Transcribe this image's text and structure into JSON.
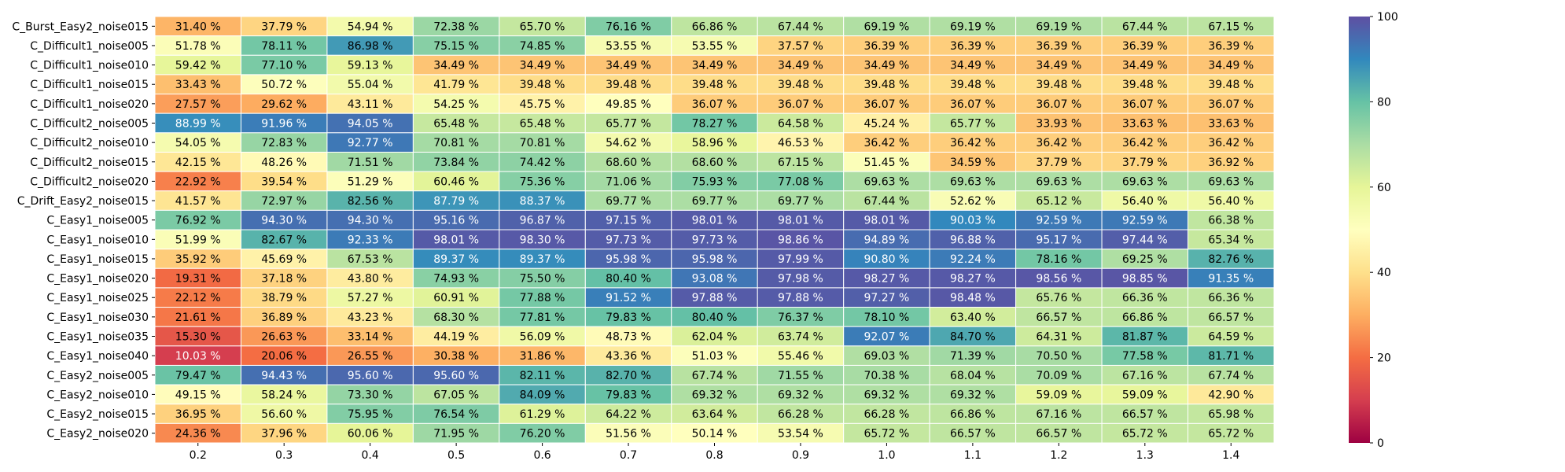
{
  "chart_data": {
    "type": "heatmap",
    "title": "",
    "xlabel": "",
    "ylabel": "",
    "x_categories": [
      "0.2",
      "0.3",
      "0.4",
      "0.5",
      "0.6",
      "0.7",
      "0.8",
      "0.9",
      "1.0",
      "1.1",
      "1.2",
      "1.3",
      "1.4"
    ],
    "y_categories": [
      "C_Burst_Easy2_noise015",
      "C_Difficult1_noise005",
      "C_Difficult1_noise010",
      "C_Difficult1_noise015",
      "C_Difficult1_noise020",
      "C_Difficult2_noise005",
      "C_Difficult2_noise010",
      "C_Difficult2_noise015",
      "C_Difficult2_noise020",
      "C_Drift_Easy2_noise015",
      "C_Easy1_noise005",
      "C_Easy1_noise010",
      "C_Easy1_noise015",
      "C_Easy1_noise020",
      "C_Easy1_noise025",
      "C_Easy1_noise030",
      "C_Easy1_noise035",
      "C_Easy1_noise040",
      "C_Easy2_noise005",
      "C_Easy2_noise010",
      "C_Easy2_noise015",
      "C_Easy2_noise020"
    ],
    "values": [
      [
        31.4,
        37.79,
        54.94,
        72.38,
        65.7,
        76.16,
        66.86,
        67.44,
        69.19,
        69.19,
        69.19,
        67.44,
        67.15
      ],
      [
        51.78,
        78.11,
        86.98,
        75.15,
        74.85,
        53.55,
        53.55,
        37.57,
        36.39,
        36.39,
        36.39,
        36.39,
        36.39
      ],
      [
        59.42,
        77.1,
        59.13,
        34.49,
        34.49,
        34.49,
        34.49,
        34.49,
        34.49,
        34.49,
        34.49,
        34.49,
        34.49
      ],
      [
        33.43,
        50.72,
        55.04,
        41.79,
        39.48,
        39.48,
        39.48,
        39.48,
        39.48,
        39.48,
        39.48,
        39.48,
        39.48
      ],
      [
        27.57,
        29.62,
        43.11,
        54.25,
        45.75,
        49.85,
        36.07,
        36.07,
        36.07,
        36.07,
        36.07,
        36.07,
        36.07
      ],
      [
        88.99,
        91.96,
        94.05,
        65.48,
        65.48,
        65.77,
        78.27,
        64.58,
        45.24,
        65.77,
        33.93,
        33.63,
        33.63
      ],
      [
        54.05,
        72.83,
        92.77,
        70.81,
        70.81,
        54.62,
        58.96,
        46.53,
        36.42,
        36.42,
        36.42,
        36.42,
        36.42
      ],
      [
        42.15,
        48.26,
        71.51,
        73.84,
        74.42,
        68.6,
        68.6,
        67.15,
        51.45,
        34.59,
        37.79,
        37.79,
        36.92
      ],
      [
        22.92,
        39.54,
        51.29,
        60.46,
        75.36,
        71.06,
        75.93,
        77.08,
        69.63,
        69.63,
        69.63,
        69.63,
        69.63
      ],
      [
        41.57,
        72.97,
        82.56,
        87.79,
        88.37,
        69.77,
        69.77,
        69.77,
        67.44,
        52.62,
        65.12,
        56.4,
        56.4
      ],
      [
        76.92,
        94.3,
        94.3,
        95.16,
        96.87,
        97.15,
        98.01,
        98.01,
        98.01,
        90.03,
        92.59,
        92.59,
        66.38
      ],
      [
        51.99,
        82.67,
        92.33,
        98.01,
        98.3,
        97.73,
        97.73,
        98.86,
        94.89,
        96.88,
        95.17,
        97.44,
        65.34
      ],
      [
        35.92,
        45.69,
        67.53,
        89.37,
        89.37,
        95.98,
        95.98,
        97.99,
        90.8,
        92.24,
        78.16,
        69.25,
        82.76
      ],
      [
        19.31,
        37.18,
        43.8,
        74.93,
        75.5,
        80.4,
        93.08,
        97.98,
        98.27,
        98.27,
        98.56,
        98.85,
        91.35
      ],
      [
        22.12,
        38.79,
        57.27,
        60.91,
        77.88,
        91.52,
        97.88,
        97.88,
        97.27,
        98.48,
        65.76,
        66.36,
        66.36
      ],
      [
        21.61,
        36.89,
        43.23,
        68.3,
        77.81,
        79.83,
        80.4,
        76.37,
        78.1,
        63.4,
        66.57,
        66.86,
        66.57
      ],
      [
        15.3,
        26.63,
        33.14,
        44.19,
        56.09,
        48.73,
        62.04,
        63.74,
        92.07,
        84.7,
        64.31,
        81.87,
        64.59
      ],
      [
        10.03,
        20.06,
        26.55,
        30.38,
        31.86,
        43.36,
        51.03,
        55.46,
        69.03,
        71.39,
        70.5,
        77.58,
        81.71
      ],
      [
        79.47,
        94.43,
        95.6,
        95.6,
        82.11,
        82.7,
        67.74,
        71.55,
        70.38,
        68.04,
        70.09,
        67.16,
        67.74
      ],
      [
        49.15,
        58.24,
        73.3,
        67.05,
        84.09,
        79.83,
        69.32,
        69.32,
        69.32,
        69.32,
        59.09,
        59.09,
        42.9
      ],
      [
        36.95,
        56.6,
        75.95,
        76.54,
        61.29,
        64.22,
        63.64,
        66.28,
        66.28,
        66.86,
        67.16,
        66.57,
        65.98
      ],
      [
        24.36,
        37.96,
        60.06,
        71.95,
        76.2,
        51.56,
        50.14,
        53.54,
        65.72,
        66.57,
        66.57,
        65.72,
        65.72
      ]
    ],
    "value_suffix": " %",
    "colorbar": {
      "min": 0,
      "max": 100,
      "ticks": [
        "0",
        "20",
        "40",
        "60",
        "80",
        "100"
      ],
      "colormap": "Spectral"
    },
    "grid": false
  }
}
